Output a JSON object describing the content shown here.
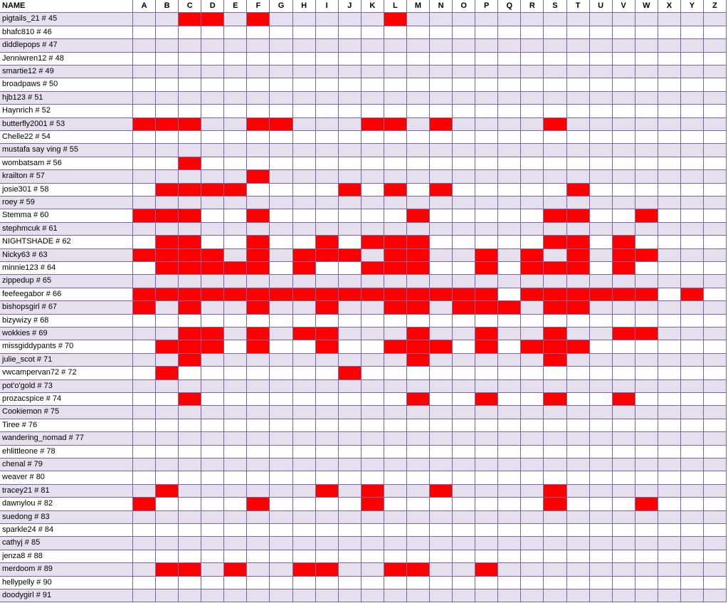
{
  "header": {
    "name_label": "NAME",
    "letters": [
      "A",
      "B",
      "C",
      "D",
      "E",
      "F",
      "G",
      "H",
      "I",
      "J",
      "K",
      "L",
      "M",
      "N",
      "O",
      "P",
      "Q",
      "R",
      "S",
      "T",
      "U",
      "V",
      "W",
      "X",
      "Y",
      "Z"
    ]
  },
  "colors": {
    "filled": "#ff0000",
    "band": "#e6e0ee",
    "plain": "#ffffff",
    "grid": "#8064a2"
  },
  "rows": [
    {
      "name": "pigtails_21 # 45",
      "marks": [
        "C",
        "D",
        "F",
        "L"
      ]
    },
    {
      "name": "bhafc810 # 46",
      "marks": []
    },
    {
      "name": "diddlepops # 47",
      "marks": []
    },
    {
      "name": "Jenniwren12 # 48",
      "marks": []
    },
    {
      "name": "smartie12 # 49",
      "marks": []
    },
    {
      "name": "broadpaws # 50",
      "marks": []
    },
    {
      "name": "hjb123 # 51",
      "marks": []
    },
    {
      "name": "Haynrich # 52",
      "marks": []
    },
    {
      "name": "butterfly2001 # 53",
      "marks": [
        "A",
        "B",
        "C",
        "F",
        "G",
        "K",
        "L",
        "N",
        "S"
      ]
    },
    {
      "name": "Chelle22 # 54",
      "marks": []
    },
    {
      "name": "mustafa say ving # 55",
      "marks": []
    },
    {
      "name": "wombatsam # 56",
      "marks": [
        "C"
      ]
    },
    {
      "name": "krailton # 57",
      "marks": [
        "F"
      ]
    },
    {
      "name": "josie301 # 58",
      "marks": [
        "B",
        "C",
        "D",
        "E",
        "J",
        "L",
        "N",
        "T"
      ]
    },
    {
      "name": "roey # 59",
      "marks": []
    },
    {
      "name": "Stemma # 60",
      "marks": [
        "A",
        "B",
        "C",
        "F",
        "M",
        "S",
        "T",
        "W"
      ]
    },
    {
      "name": "stephmcuk # 61",
      "marks": []
    },
    {
      "name": "NIGHTSHADE # 62",
      "marks": [
        "B",
        "C",
        "F",
        "I",
        "K",
        "L",
        "M",
        "S",
        "T",
        "V"
      ]
    },
    {
      "name": "Nicky63 # 63",
      "marks": [
        "A",
        "B",
        "C",
        "D",
        "F",
        "H",
        "I",
        "J",
        "L",
        "M",
        "P",
        "R",
        "T",
        "V",
        "W"
      ]
    },
    {
      "name": "minnie123 # 64",
      "marks": [
        "B",
        "C",
        "D",
        "E",
        "F",
        "H",
        "K",
        "L",
        "M",
        "P",
        "R",
        "S",
        "T",
        "V"
      ]
    },
    {
      "name": "zippedup # 65",
      "marks": []
    },
    {
      "name": "feefeegabor # 66",
      "marks": [
        "A",
        "B",
        "C",
        "D",
        "E",
        "F",
        "G",
        "H",
        "I",
        "J",
        "K",
        "L",
        "M",
        "N",
        "O",
        "P",
        "R",
        "S",
        "T",
        "U",
        "V",
        "W",
        "Y"
      ]
    },
    {
      "name": "bishopsgirl # 67",
      "marks": [
        "A",
        "C",
        "F",
        "I",
        "L",
        "M",
        "O",
        "P",
        "Q",
        "S",
        "T"
      ]
    },
    {
      "name": "bizywizy # 68",
      "marks": []
    },
    {
      "name": "wokkies # 69",
      "marks": [
        "C",
        "D",
        "F",
        "H",
        "I",
        "M",
        "P",
        "S",
        "V",
        "W"
      ]
    },
    {
      "name": "missgiddypants # 70",
      "marks": [
        "B",
        "C",
        "D",
        "F",
        "I",
        "L",
        "M",
        "N",
        "P",
        "R",
        "S",
        "T"
      ]
    },
    {
      "name": "julie_scot # 71",
      "marks": [
        "C",
        "M",
        "S"
      ]
    },
    {
      "name": "vwcampervan72 # 72",
      "marks": [
        "B",
        "J"
      ]
    },
    {
      "name": "pot'o'gold # 73",
      "marks": []
    },
    {
      "name": "prozacspice # 74",
      "marks": [
        "C",
        "M",
        "P",
        "S",
        "V"
      ]
    },
    {
      "name": "Cookiemon # 75",
      "marks": []
    },
    {
      "name": "Tiree # 76",
      "marks": []
    },
    {
      "name": "wandering_nomad # 77",
      "marks": []
    },
    {
      "name": "ehlittleone # 78",
      "marks": []
    },
    {
      "name": "chenal # 79",
      "marks": []
    },
    {
      "name": "weaver # 80",
      "marks": []
    },
    {
      "name": "tracey21 # 81",
      "marks": [
        "B",
        "I",
        "K",
        "N",
        "S"
      ]
    },
    {
      "name": "dawnylou # 82",
      "marks": [
        "A",
        "F",
        "K",
        "S",
        "W"
      ]
    },
    {
      "name": "suedong # 83",
      "marks": []
    },
    {
      "name": "sparkle24 # 84",
      "marks": []
    },
    {
      "name": "cathyj # 85",
      "marks": []
    },
    {
      "name": "jenza8 # 88",
      "marks": []
    },
    {
      "name": "merdoom # 89",
      "marks": [
        "B",
        "C",
        "E",
        "H",
        "I",
        "L",
        "M",
        "P"
      ]
    },
    {
      "name": "hellypelly # 90",
      "marks": []
    },
    {
      "name": "doodygirl # 91",
      "marks": []
    }
  ]
}
